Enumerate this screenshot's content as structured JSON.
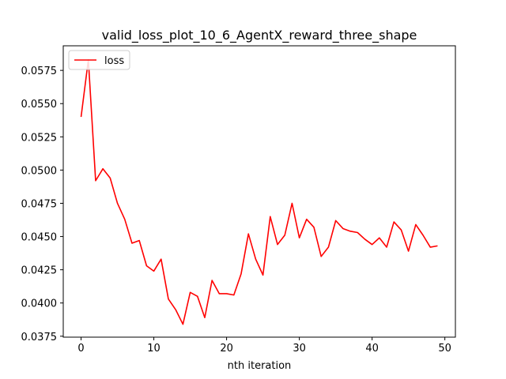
{
  "chart_data": {
    "type": "line",
    "title": "valid_loss_plot_10_6_AgentX_reward_three_shape",
    "xlabel": "nth iteration",
    "ylabel": "",
    "xlim": [
      -2.45,
      51.45
    ],
    "ylim": [
      0.03743,
      0.05935
    ],
    "xticks": [
      0,
      10,
      20,
      30,
      40,
      50
    ],
    "yticks": [
      0.0375,
      0.04,
      0.0425,
      0.045,
      0.0475,
      0.05,
      0.0525,
      0.055,
      0.0575
    ],
    "ytick_labels": [
      "0.0375",
      "0.0400",
      "0.0425",
      "0.0450",
      "0.0475",
      "0.0500",
      "0.0525",
      "0.0550",
      "0.0575"
    ],
    "xtick_labels": [
      "0",
      "10",
      "20",
      "30",
      "40",
      "50"
    ],
    "legend_position": "upper-left",
    "grid": false,
    "series": [
      {
        "name": "loss",
        "color": "#ff0000",
        "x": [
          0,
          1,
          2,
          3,
          4,
          5,
          6,
          7,
          8,
          9,
          10,
          11,
          12,
          13,
          14,
          15,
          16,
          17,
          18,
          19,
          20,
          21,
          22,
          23,
          24,
          25,
          26,
          27,
          28,
          29,
          30,
          31,
          32,
          33,
          34,
          35,
          36,
          37,
          38,
          39,
          40,
          41,
          42,
          43,
          44,
          45,
          46,
          47,
          48,
          49
        ],
        "values": [
          0.054,
          0.0583,
          0.0492,
          0.0501,
          0.0494,
          0.0475,
          0.0463,
          0.0445,
          0.0447,
          0.0428,
          0.0424,
          0.0433,
          0.0403,
          0.0395,
          0.0384,
          0.0408,
          0.0405,
          0.0389,
          0.0417,
          0.0407,
          0.0407,
          0.0406,
          0.0422,
          0.0452,
          0.0433,
          0.0421,
          0.0465,
          0.0444,
          0.0451,
          0.0475,
          0.0449,
          0.0463,
          0.0457,
          0.0435,
          0.0442,
          0.0462,
          0.0456,
          0.0454,
          0.0453,
          0.0448,
          0.0444,
          0.0449,
          0.0442,
          0.0461,
          0.0455,
          0.0439,
          0.0459,
          0.0451,
          0.0442,
          0.0443
        ]
      }
    ]
  }
}
